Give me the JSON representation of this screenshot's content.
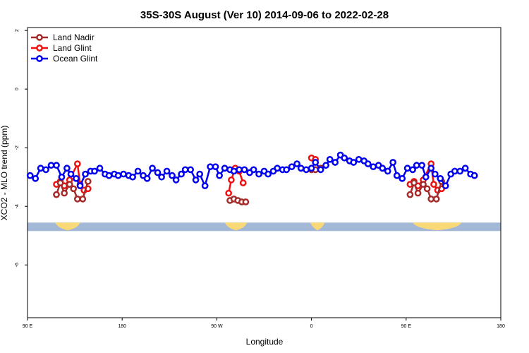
{
  "chart_data": {
    "type": "line",
    "title": "35S-30S August (Ver 10)   2014-09-06 to 2022-02-28",
    "xlabel": "Longitude",
    "ylabel": "XCO2 - MLO trend (ppm)",
    "xlim": [
      90,
      450
    ],
    "ylim": [
      -7.8,
      2.1
    ],
    "x_ticks": [
      {
        "value": 90,
        "label": "90 E"
      },
      {
        "value": 162,
        "label": "180"
      },
      {
        "value": 234,
        "label": "90 W"
      },
      {
        "value": 306,
        "label": "0"
      },
      {
        "value": 378,
        "label": "90 E"
      },
      {
        "value": 450,
        "label": "180"
      }
    ],
    "y_ticks": [
      {
        "value": 2,
        "label": "2"
      },
      {
        "value": 0,
        "label": "0"
      },
      {
        "value": -2,
        "label": "-2"
      },
      {
        "value": -4,
        "label": "-4"
      },
      {
        "value": -6,
        "label": "-6"
      }
    ],
    "legend_position": "top-left",
    "land_band": {
      "y": -4.7,
      "ocean_color": "#a3b8d6",
      "land_color": "#f9d977",
      "land_segments": [
        [
          111,
          130
        ],
        [
          240,
          257
        ],
        [
          305,
          316
        ],
        [
          383,
          420
        ]
      ]
    },
    "series": [
      {
        "name": "Land Glint",
        "color": "#ee1111",
        "segments": [
          [
            [
              112,
              -3.25
            ],
            [
              115,
              -3.15
            ],
            [
              118,
              -3.3
            ],
            [
              122,
              -3.1
            ],
            [
              128,
              -2.55
            ],
            [
              130,
              -3.25
            ],
            [
              133,
              -3.45
            ],
            [
              136,
              -3.4
            ]
          ],
          [
            [
              243,
              -3.55
            ],
            [
              245,
              -3.1
            ],
            [
              248,
              -2.7
            ],
            [
              251,
              -2.8
            ],
            [
              254,
              -3.2
            ]
          ],
          [
            [
              306,
              -2.35
            ],
            [
              309,
              -2.4
            ]
          ],
          [
            [
              381,
              -3.25
            ],
            [
              384,
              -3.15
            ],
            [
              387,
              -3.3
            ],
            [
              391,
              -3.1
            ],
            [
              397,
              -2.55
            ],
            [
              399,
              -3.25
            ],
            [
              402,
              -3.45
            ],
            [
              405,
              -3.4
            ]
          ]
        ]
      },
      {
        "name": "Land Nadir",
        "color": "#a52a2a",
        "segments": [
          [
            [
              112,
              -3.6
            ],
            [
              115,
              -3.2
            ],
            [
              118,
              -3.55
            ],
            [
              122,
              -3.25
            ],
            [
              125,
              -3.4
            ],
            [
              128,
              -3.75
            ],
            [
              132,
              -3.75
            ],
            [
              136,
              -3.15
            ]
          ],
          [
            [
              244,
              -3.8
            ],
            [
              247,
              -3.75
            ],
            [
              250,
              -3.8
            ],
            [
              253,
              -3.85
            ],
            [
              256,
              -3.85
            ]
          ],
          [
            [
              306,
              -2.75
            ],
            [
              309,
              -2.75
            ],
            [
              313,
              -2.7
            ]
          ],
          [
            [
              381,
              -3.6
            ],
            [
              384,
              -3.2
            ],
            [
              387,
              -3.55
            ],
            [
              391,
              -3.25
            ],
            [
              394,
              -3.4
            ],
            [
              397,
              -3.75
            ],
            [
              401,
              -3.75
            ],
            [
              405,
              -3.15
            ]
          ]
        ]
      },
      {
        "name": "Ocean Glint",
        "color": "#0000ee",
        "segments": [
          [
            [
              92,
              -2.95
            ],
            [
              96,
              -3.05
            ],
            [
              100,
              -2.7
            ],
            [
              104,
              -2.75
            ],
            [
              108,
              -2.6
            ],
            [
              112,
              -2.6
            ],
            [
              116,
              -3.0
            ],
            [
              120,
              -2.7
            ],
            [
              123,
              -2.9
            ],
            [
              127,
              -3.05
            ],
            [
              130,
              -3.3
            ],
            [
              134,
              -2.9
            ],
            [
              138,
              -2.8
            ],
            [
              141,
              -2.8
            ],
            [
              145,
              -2.7
            ],
            [
              149,
              -2.9
            ],
            [
              152,
              -2.95
            ],
            [
              156,
              -2.9
            ],
            [
              159,
              -2.95
            ],
            [
              163,
              -2.9
            ],
            [
              167,
              -2.95
            ],
            [
              170,
              -3.0
            ],
            [
              174,
              -2.8
            ],
            [
              178,
              -2.95
            ],
            [
              181,
              -3.05
            ],
            [
              185,
              -2.7
            ],
            [
              189,
              -2.85
            ],
            [
              192,
              -3.0
            ],
            [
              196,
              -2.8
            ],
            [
              200,
              -2.95
            ],
            [
              203,
              -3.1
            ],
            [
              207,
              -2.9
            ],
            [
              210,
              -2.75
            ],
            [
              214,
              -2.75
            ],
            [
              218,
              -3.1
            ],
            [
              221,
              -2.9
            ],
            [
              225,
              -3.3
            ],
            [
              229,
              -2.65
            ],
            [
              233,
              -2.65
            ],
            [
              236,
              -2.95
            ],
            [
              240,
              -2.7
            ],
            [
              244,
              -2.75
            ],
            [
              247,
              -2.8
            ],
            [
              251,
              -2.75
            ],
            [
              255,
              -2.75
            ],
            [
              259,
              -2.85
            ],
            [
              262,
              -2.75
            ],
            [
              266,
              -2.9
            ],
            [
              270,
              -2.8
            ],
            [
              273,
              -2.9
            ],
            [
              277,
              -2.8
            ],
            [
              280,
              -2.7
            ],
            [
              284,
              -2.75
            ],
            [
              287,
              -2.75
            ],
            [
              291,
              -2.65
            ],
            [
              295,
              -2.55
            ],
            [
              298,
              -2.7
            ],
            [
              302,
              -2.75
            ],
            [
              306,
              -2.7
            ],
            [
              309,
              -2.5
            ],
            [
              313,
              -2.75
            ],
            [
              317,
              -2.6
            ],
            [
              320,
              -2.4
            ],
            [
              324,
              -2.5
            ],
            [
              328,
              -2.25
            ],
            [
              331,
              -2.35
            ],
            [
              335,
              -2.45
            ],
            [
              338,
              -2.5
            ],
            [
              342,
              -2.4
            ],
            [
              346,
              -2.45
            ],
            [
              349,
              -2.55
            ],
            [
              353,
              -2.65
            ],
            [
              357,
              -2.6
            ],
            [
              360,
              -2.7
            ],
            [
              364,
              -2.8
            ],
            [
              368,
              -2.5
            ],
            [
              371,
              -2.95
            ],
            [
              375,
              -3.05
            ],
            [
              379,
              -2.7
            ],
            [
              383,
              -2.75
            ],
            [
              386,
              -2.6
            ],
            [
              390,
              -2.6
            ],
            [
              393,
              -3.0
            ],
            [
              397,
              -2.7
            ],
            [
              400,
              -2.9
            ],
            [
              404,
              -3.05
            ],
            [
              408,
              -3.3
            ],
            [
              412,
              -2.9
            ],
            [
              415,
              -2.8
            ],
            [
              419,
              -2.8
            ],
            [
              423,
              -2.7
            ],
            [
              427,
              -2.9
            ],
            [
              430,
              -2.95
            ]
          ]
        ]
      }
    ]
  }
}
